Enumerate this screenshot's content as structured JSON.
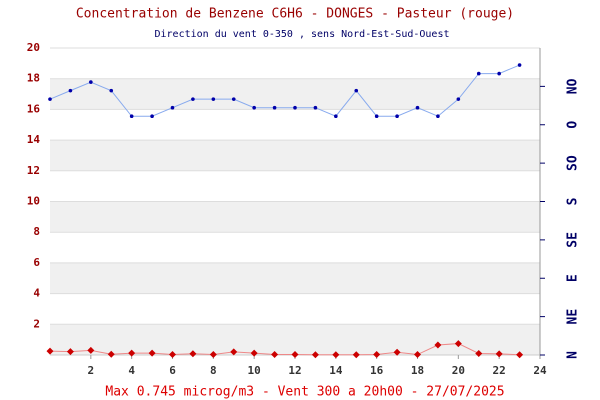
{
  "chart_data": {
    "type": "line",
    "title": "Concentration de Benzene C6H6  -   DONGES - Pasteur (rouge)",
    "subtitle": "Direction du vent 0-350 , sens Nord-Est-Sud-Ouest",
    "footer": "Max 0.745 microg/m3 - Vent 300  a 20h00 - 27/07/2025",
    "x": [
      0,
      1,
      2,
      3,
      4,
      5,
      6,
      7,
      8,
      9,
      10,
      11,
      12,
      13,
      14,
      15,
      16,
      17,
      18,
      19,
      20,
      21,
      22,
      23
    ],
    "xlim": [
      0,
      24
    ],
    "xticks": [
      2,
      4,
      6,
      8,
      10,
      12,
      14,
      16,
      18,
      20,
      22,
      24
    ],
    "ylim": [
      0,
      20
    ],
    "yticks": [
      2,
      4,
      6,
      8,
      10,
      12,
      14,
      16,
      18,
      20
    ],
    "y2lim": [
      0,
      360
    ],
    "y2ticks": [
      {
        "value": 0,
        "label": "N"
      },
      {
        "value": 45,
        "label": "NE"
      },
      {
        "value": 90,
        "label": "E"
      },
      {
        "value": 135,
        "label": "SE"
      },
      {
        "value": 180,
        "label": "S"
      },
      {
        "value": 225,
        "label": "SO"
      },
      {
        "value": 270,
        "label": "O"
      },
      {
        "value": 315,
        "label": "NO"
      }
    ],
    "bands": true,
    "series": [
      {
        "name": "Benzene",
        "color": "#cc0000",
        "line_color": "#ee8888",
        "values": [
          0.25,
          0.22,
          0.3,
          0.05,
          0.12,
          0.12,
          0.03,
          0.08,
          0.03,
          0.2,
          0.12,
          0.03,
          0.03,
          0.02,
          0.02,
          0.02,
          0.03,
          0.18,
          0.03,
          0.65,
          0.745,
          0.1,
          0.07,
          0.02
        ]
      },
      {
        "name": "Vent",
        "axis": "y2",
        "color": "#0000aa",
        "line_color": "#88aaee",
        "values": [
          300,
          310,
          320,
          310,
          280,
          280,
          290,
          300,
          300,
          300,
          290,
          290,
          290,
          290,
          280,
          310,
          280,
          280,
          290,
          280,
          300,
          330,
          330,
          340
        ]
      }
    ]
  }
}
